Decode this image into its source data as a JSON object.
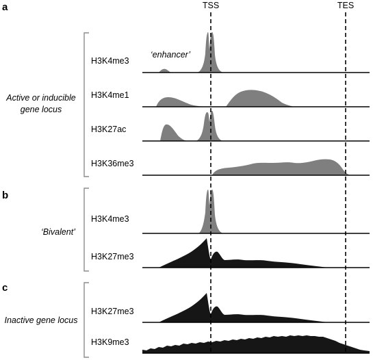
{
  "markers": {
    "tss": "TSS",
    "tes": "TES"
  },
  "panels": {
    "a": {
      "letter": "a",
      "group_line1": "Active or inducible",
      "group_line2": "gene locus",
      "annotation": "‘enhancer’",
      "tracks": [
        "H3K4me3",
        "H3K4me1",
        "H3K27ac",
        "H3K36me3"
      ]
    },
    "b": {
      "letter": "b",
      "group_label": "‘Bivalent’",
      "tracks": [
        "H3K4me3",
        "H3K27me3"
      ]
    },
    "c": {
      "letter": "c",
      "group_label": "Inactive gene locus",
      "tracks": [
        "H3K27me3",
        "H3K9me3"
      ]
    }
  },
  "colors": {
    "active_mark": "#7f7f7f",
    "repressive_mark": "#161616",
    "axis": "#000000",
    "bracket": "#8c8c8c"
  }
}
